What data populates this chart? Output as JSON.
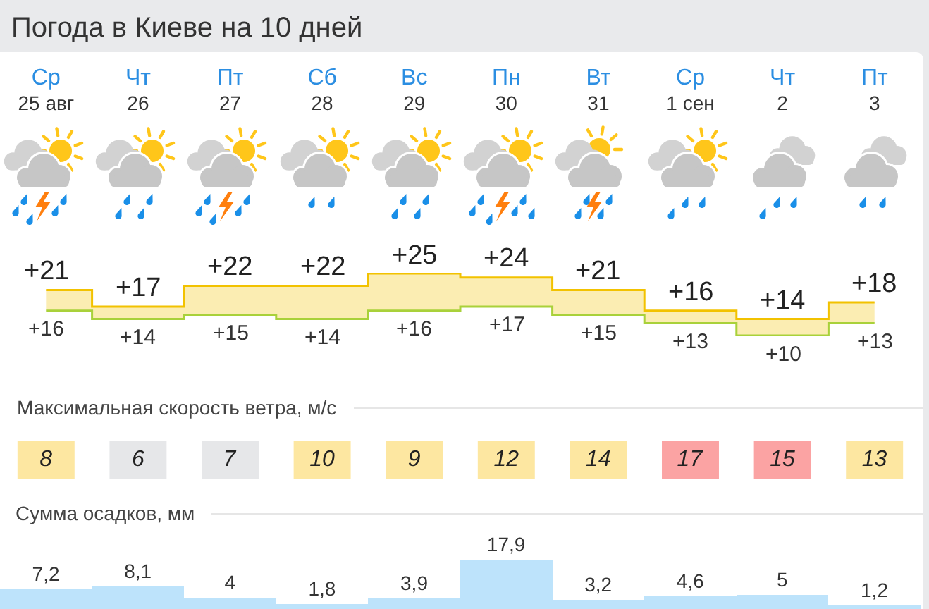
{
  "chart_data": [
    {
      "type": "step",
      "title": "Погода в Киеве на 10 дней",
      "categories": [
        "Ср\n25 авг",
        "Чт\n26",
        "Пт\n27",
        "Сб\n28",
        "Вс\n29",
        "Пн\n30",
        "Вт\n31",
        "Ср\n1 сен",
        "Чт\n2",
        "Пт\n3"
      ],
      "series": [
        {
          "color": "#f2c200",
          "values": [
            21,
            17,
            22,
            22,
            25,
            24,
            21,
            16,
            14,
            18
          ],
          "value_labels": [
            "+21",
            "+17",
            "+22",
            "+22",
            "+25",
            "+24",
            "+21",
            "+16",
            "+14",
            "+18"
          ]
        },
        {
          "color": "#a9d13a",
          "values": [
            16,
            14,
            15,
            14,
            16,
            17,
            15,
            13,
            10,
            13
          ],
          "value_labels": [
            "+16",
            "+14",
            "+15",
            "+14",
            "+16",
            "+17",
            "+15",
            "+13",
            "+10",
            "+13"
          ]
        }
      ],
      "tick_labels": "x"
    },
    {
      "type": "heatmap",
      "title": "Максимальная скорость ветра, м/с",
      "categories": [
        null,
        null,
        null,
        null,
        null,
        null,
        null,
        null,
        null,
        null
      ],
      "y_categories": [
        null
      ],
      "cells": [
        [
          8,
          6,
          7,
          10,
          9,
          12,
          14,
          17,
          15,
          13
        ]
      ],
      "colors": [
        "#fde7a1",
        "#e6e7e9",
        "#e6e7e9",
        "#fde7a1",
        "#fde7a1",
        "#fde7a1",
        "#fde7a1",
        "#fba3a3",
        "#fba3a3",
        "#fde7a1"
      ],
      "data_labels": true,
      "tick_labels": false
    },
    {
      "type": "bar",
      "title": "Сумма осадков, мм",
      "categories": [
        null,
        null,
        null,
        null,
        null,
        null,
        null,
        null,
        null,
        null
      ],
      "values": [
        7.2,
        8.1,
        4,
        1.8,
        3.9,
        17.9,
        3.2,
        4.6,
        5,
        1.2
      ],
      "value_labels": [
        "7,2",
        "8,1",
        "4",
        "1,8",
        "3,9",
        "17,9",
        "3,2",
        "4,6",
        "5",
        "1,2"
      ],
      "color": "#bde3fb",
      "tick_labels": false
    }
  ]
}
